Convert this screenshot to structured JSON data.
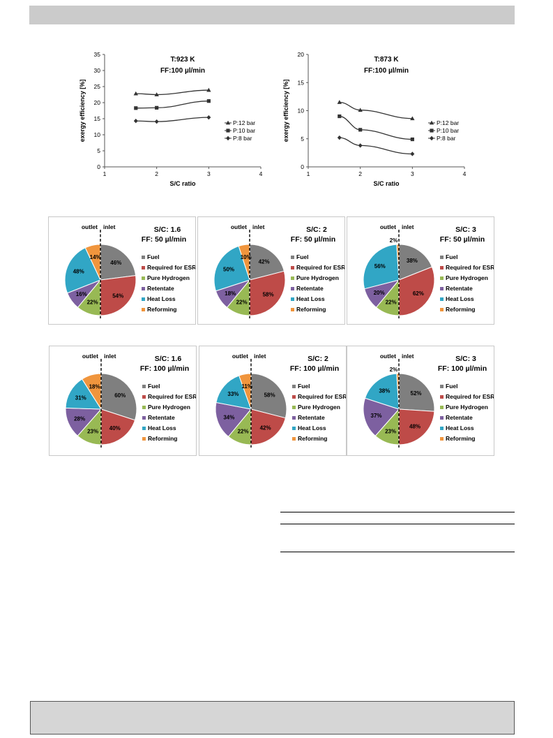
{
  "colors": {
    "header_bar": "#cbcbcb",
    "footer_box": "#d6d6d6",
    "fuel": "#7f7f7f",
    "required_for_esr": "#be4b48",
    "pure_hydrogen": "#98b954",
    "retentate": "#7d60a0",
    "heat_loss": "#31a6c5",
    "reforming": "#f0953d"
  },
  "pie_legend": [
    "Fuel",
    "Required for ESR",
    "Pure Hydrogen",
    "Retentate",
    "Heat Loss",
    "Reforming"
  ],
  "chart_data": [
    {
      "type": "line",
      "title": "T:923 K",
      "subtitle": "FF:100 µl/min",
      "xlabel": "S/C ratio",
      "ylabel": "exergy efficiency [%]",
      "xlim": [
        1,
        4
      ],
      "ylim": [
        0,
        35
      ],
      "xticks": [
        1,
        2,
        3,
        4
      ],
      "yticks": [
        0,
        5,
        10,
        15,
        20,
        25,
        30,
        35
      ],
      "grid": false,
      "legend_position": "right",
      "x": [
        1.6,
        2,
        3
      ],
      "series": [
        {
          "name": "P:12 bar",
          "marker": "triangle",
          "values": [
            22.8,
            22.5,
            23.9
          ]
        },
        {
          "name": "P:10 bar",
          "marker": "square",
          "values": [
            18.3,
            18.4,
            20.5
          ]
        },
        {
          "name": "P:8 bar",
          "marker": "diamond",
          "values": [
            14.3,
            14.1,
            15.4
          ]
        }
      ]
    },
    {
      "type": "line",
      "title": "T:873 K",
      "subtitle": "FF:100 µl/min",
      "xlabel": "S/C ratio",
      "ylabel": "exergy efficiency [%]",
      "xlim": [
        1,
        4
      ],
      "ylim": [
        0,
        20
      ],
      "xticks": [
        1,
        2,
        3,
        4
      ],
      "yticks": [
        0,
        5,
        10,
        15,
        20
      ],
      "grid": false,
      "legend_position": "right",
      "x": [
        1.6,
        2,
        3
      ],
      "series": [
        {
          "name": "P:12 bar",
          "marker": "triangle",
          "values": [
            11.5,
            10.1,
            8.6
          ]
        },
        {
          "name": "P:10 bar",
          "marker": "square",
          "values": [
            9.0,
            6.6,
            4.9
          ]
        },
        {
          "name": "P:8 bar",
          "marker": "diamond",
          "values": [
            5.2,
            3.8,
            2.3
          ]
        }
      ]
    },
    {
      "type": "pie",
      "title": "S/C: 1.6",
      "subtitle": "FF: 50 µl/min",
      "side_labels": [
        "outlet",
        "inlet"
      ],
      "inlet": {
        "Fuel": 46,
        "Required for ESR": 54
      },
      "outlet": {
        "Pure Hydrogen": 22,
        "Retentate": 16,
        "Heat Loss": 48,
        "Reforming": 14
      },
      "legend_position": "right"
    },
    {
      "type": "pie",
      "title": "S/C: 2",
      "subtitle": "FF: 50 µl/min",
      "side_labels": [
        "outlet",
        "inlet"
      ],
      "inlet": {
        "Fuel": 42,
        "Required for ESR": 58
      },
      "outlet": {
        "Pure Hydrogen": 22,
        "Retentate": 18,
        "Heat Loss": 50,
        "Reforming": 10
      },
      "legend_position": "right"
    },
    {
      "type": "pie",
      "title": "S/C: 3",
      "subtitle": "FF: 50 µl/min",
      "side_labels": [
        "outlet",
        "inlet"
      ],
      "inlet": {
        "Fuel": 38,
        "Required for ESR": 62
      },
      "outlet": {
        "Pure Hydrogen": 22,
        "Retentate": 20,
        "Heat Loss": 56,
        "Reforming": 2
      },
      "legend_position": "right"
    },
    {
      "type": "pie",
      "title": "S/C: 1.6",
      "subtitle": "FF: 100 µl/min",
      "side_labels": [
        "outlet",
        "inlet"
      ],
      "inlet": {
        "Fuel": 60,
        "Required for ESR": 40
      },
      "outlet": {
        "Pure Hydrogen": 23,
        "Retentate": 28,
        "Heat Loss": 31,
        "Reforming": 18
      },
      "legend_position": "right"
    },
    {
      "type": "pie",
      "title": "S/C: 2",
      "subtitle": "FF: 100 µl/min",
      "side_labels": [
        "outlet",
        "inlet"
      ],
      "inlet": {
        "Fuel": 58,
        "Required for ESR": 42
      },
      "outlet": {
        "Pure Hydrogen": 22,
        "Retentate": 34,
        "Heat Loss": 33,
        "Reforming": 11
      },
      "legend_position": "right"
    },
    {
      "type": "pie",
      "title": "S/C: 3",
      "subtitle": "FF: 100 µl/min",
      "side_labels": [
        "outlet",
        "inlet"
      ],
      "inlet": {
        "Fuel": 52,
        "Required for ESR": 48
      },
      "outlet": {
        "Pure Hydrogen": 23,
        "Retentate": 37,
        "Heat Loss": 38,
        "Reforming": 2
      },
      "legend_position": "right"
    }
  ]
}
